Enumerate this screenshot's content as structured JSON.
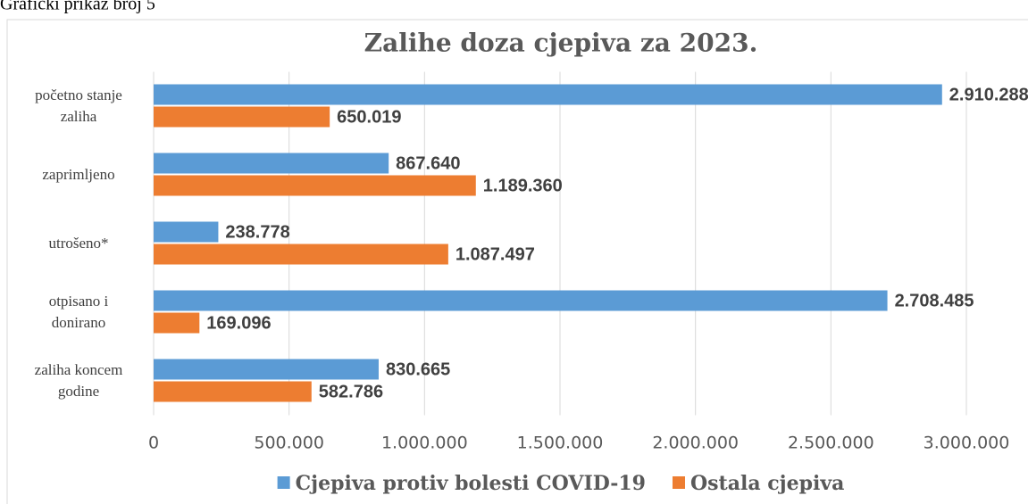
{
  "caption": "Grafički prikaz broj 5",
  "chart_data": {
    "type": "barh",
    "title": "Zalihe doza cjepiva za 2023.",
    "categories": [
      "početno stanje zaliha",
      "zaprimljeno",
      "utrošeno*",
      "otpisano i donirano",
      "zaliha koncem godine"
    ],
    "series": [
      {
        "name": "Cjepiva protiv bolesti COVID-19",
        "color": "#5b9bd5",
        "values": [
          2910288,
          867640,
          238778,
          2708485,
          830665
        ],
        "value_labels": [
          "2.910.288",
          "867.640",
          "238.778",
          "2.708.485",
          "830.665"
        ]
      },
      {
        "name": "Ostala cjepiva",
        "color": "#ed7d31",
        "values": [
          650019,
          1189360,
          1087497,
          169096,
          582786
        ],
        "value_labels": [
          "650.019",
          "1.189.360",
          "1.087.497",
          "169.096",
          "582.786"
        ]
      }
    ],
    "xlim": [
      0,
      3000000
    ],
    "xticks": [
      0,
      {
        "value": 500000,
        "label": "500.000"
      },
      {
        "value": 1000000,
        "label": "1.000.000"
      },
      {
        "value": 1500000,
        "label": "1.500.000"
      },
      {
        "value": 2000000,
        "label": "2.000.000"
      },
      {
        "value": 2500000,
        "label": "2.500.000"
      },
      {
        "value": 3000000,
        "label": "3.000.000"
      }
    ],
    "grid": true,
    "legend": "bottom"
  }
}
